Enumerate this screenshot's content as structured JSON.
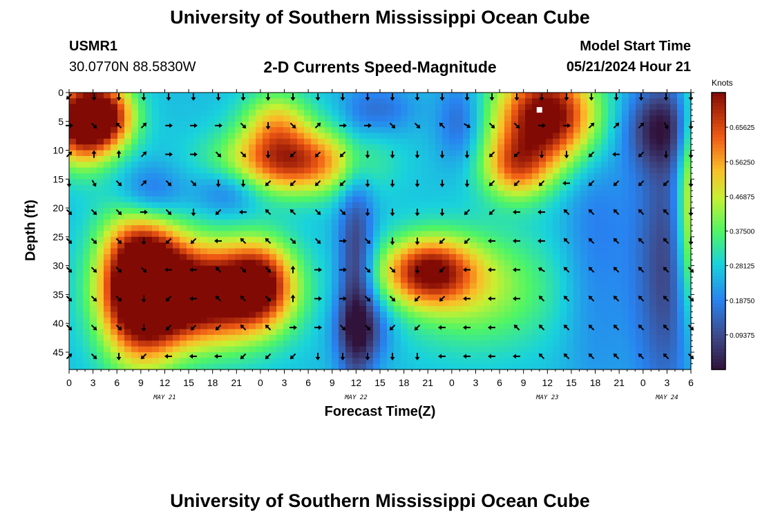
{
  "page": {
    "title": "University of Southern Mississippi Ocean Cube",
    "footer_title": "University of Southern Mississippi Ocean Cube"
  },
  "station": {
    "id": "USMR1",
    "coords": "30.0770N  88.5830W"
  },
  "model": {
    "label": "Model Start Time",
    "time": "05/21/2024 Hour 21"
  },
  "chart_data": {
    "type": "heatmap",
    "title": "2-D Currents Speed-Magnitude",
    "xlabel": "Forecast Time(Z)",
    "ylabel": "Depth (ft)",
    "colorbar_label": "Knots",
    "colorbar_ticks": [
      "0.65625",
      "0.56250",
      "0.46875",
      "0.37500",
      "0.28125",
      "0.18750",
      "0.09375"
    ],
    "colorbar_range": [
      0.0,
      0.75
    ],
    "xlim_hours": [
      0,
      78
    ],
    "ylim": [
      0,
      48
    ],
    "y_ticks": [
      0,
      5,
      10,
      15,
      20,
      25,
      30,
      35,
      40,
      45
    ],
    "x_tick_labels": [
      "0",
      "3",
      "6",
      "9",
      "12",
      "15",
      "18",
      "21",
      "0",
      "3",
      "6",
      "9",
      "12",
      "15",
      "18",
      "21",
      "0",
      "3",
      "6",
      "9",
      "12",
      "15",
      "18",
      "21",
      "0",
      "3",
      "6"
    ],
    "date_labels": [
      {
        "text": "MAY 21",
        "hour": 12
      },
      {
        "text": "MAY 22",
        "hour": 36
      },
      {
        "text": "MAY 23",
        "hour": 60
      },
      {
        "text": "MAY 24",
        "hour": 75
      }
    ],
    "marker": {
      "hour": 59,
      "depth": 3
    },
    "blobs": [
      {
        "x": 1.5,
        "y": 5,
        "sx": 2.8,
        "sy": 5,
        "a": 0.55
      },
      {
        "x": 5,
        "y": 4,
        "sx": 2.5,
        "sy": 4,
        "a": 0.35
      },
      {
        "x": 9,
        "y": 33,
        "sx": 3.5,
        "sy": 9,
        "a": 0.65
      },
      {
        "x": 17,
        "y": 35,
        "sx": 6,
        "sy": 6,
        "a": 0.58
      },
      {
        "x": 24,
        "y": 33,
        "sx": 3,
        "sy": 5,
        "a": 0.35
      },
      {
        "x": 28,
        "y": 12,
        "sx": 6,
        "sy": 4,
        "a": 0.42
      },
      {
        "x": 26,
        "y": 5,
        "sx": 3,
        "sy": 4,
        "a": 0.22
      },
      {
        "x": 45,
        "y": 31,
        "sx": 4,
        "sy": 4,
        "a": 0.42
      },
      {
        "x": 51,
        "y": 34,
        "sx": 7,
        "sy": 7,
        "a": 0.18
      },
      {
        "x": 60,
        "y": 4,
        "sx": 4.5,
        "sy": 6,
        "a": 0.55
      },
      {
        "x": 56,
        "y": 13,
        "sx": 3,
        "sy": 4,
        "a": 0.3
      },
      {
        "x": 78,
        "y": 20,
        "sx": 1.3,
        "sy": 14,
        "a": 0.3
      },
      {
        "x": 20,
        "y": 17,
        "sx": 3,
        "sy": 3,
        "a": -0.12
      },
      {
        "x": 36,
        "y": 33,
        "sx": 1.6,
        "sy": 14,
        "a": -0.22
      },
      {
        "x": 37,
        "y": 41,
        "sx": 2.5,
        "sy": 4,
        "a": -0.15
      },
      {
        "x": 10,
        "y": 18,
        "sx": 3,
        "sy": 4,
        "a": -0.2
      },
      {
        "x": 74,
        "y": 6,
        "sx": 3,
        "sy": 5,
        "a": -0.2
      },
      {
        "x": 75,
        "y": 30,
        "sx": 3,
        "sy": 18,
        "a": -0.18
      },
      {
        "x": 49,
        "y": 5,
        "sx": 2,
        "sy": 5,
        "a": -0.12
      },
      {
        "x": 39,
        "y": 3,
        "sx": 3,
        "sy": 3,
        "a": -0.1
      },
      {
        "x": 66,
        "y": 26,
        "sx": 3,
        "sy": 20,
        "a": -0.08
      }
    ],
    "arrow_rows": [
      {
        "depth": 0,
        "dirs": [
          225,
          180,
          180,
          180,
          180,
          180,
          180,
          180,
          180,
          180,
          180,
          180,
          180,
          180,
          180,
          180,
          180,
          180,
          180,
          180,
          180,
          180,
          180,
          180,
          180,
          180
        ]
      },
      {
        "depth": 5,
        "dirs": [
          90,
          135,
          315,
          45,
          90,
          90,
          90,
          135,
          180,
          135,
          45,
          90,
          90,
          135,
          135,
          315,
          120,
          135,
          135,
          90,
          90,
          45,
          45,
          45,
          150,
          180
        ]
      },
      {
        "depth": 10,
        "dirs": [
          45,
          0,
          0,
          45,
          90,
          90,
          135,
          135,
          180,
          225,
          225,
          225,
          180,
          180,
          180,
          180,
          180,
          225,
          225,
          180,
          180,
          225,
          270,
          225,
          180,
          180
        ]
      },
      {
        "depth": 15,
        "dirs": [
          180,
          150,
          135,
          45,
          135,
          135,
          180,
          180,
          225,
          225,
          225,
          225,
          180,
          180,
          180,
          180,
          180,
          225,
          225,
          225,
          270,
          225,
          225,
          225,
          225,
          180
        ]
      },
      {
        "depth": 20,
        "dirs": [
          135,
          135,
          135,
          90,
          135,
          180,
          225,
          270,
          315,
          315,
          135,
          135,
          180,
          180,
          180,
          180,
          225,
          225,
          270,
          270,
          315,
          315,
          315,
          315,
          315,
          180
        ]
      },
      {
        "depth": 25,
        "dirs": [
          135,
          135,
          135,
          180,
          225,
          225,
          270,
          315,
          315,
          135,
          135,
          90,
          135,
          180,
          180,
          225,
          225,
          270,
          270,
          270,
          315,
          315,
          315,
          315,
          315,
          180
        ]
      },
      {
        "depth": 30,
        "dirs": [
          135,
          135,
          135,
          135,
          270,
          270,
          315,
          135,
          135,
          0,
          90,
          90,
          135,
          135,
          180,
          225,
          270,
          270,
          270,
          300,
          315,
          315,
          315,
          315,
          315,
          135
        ]
      },
      {
        "depth": 35,
        "dirs": [
          135,
          135,
          135,
          180,
          225,
          270,
          315,
          315,
          135,
          0,
          90,
          90,
          135,
          135,
          225,
          225,
          270,
          270,
          270,
          315,
          315,
          315,
          315,
          315,
          315,
          135
        ]
      },
      {
        "depth": 40,
        "dirs": [
          135,
          135,
          135,
          180,
          225,
          225,
          225,
          315,
          315,
          90,
          90,
          135,
          135,
          225,
          225,
          270,
          270,
          270,
          315,
          315,
          315,
          315,
          315,
          315,
          315,
          135
        ]
      },
      {
        "depth": 45,
        "dirs": [
          45,
          135,
          180,
          225,
          270,
          270,
          270,
          225,
          225,
          225,
          180,
          180,
          180,
          180,
          180,
          270,
          270,
          270,
          270,
          315,
          315,
          315,
          315,
          315,
          315,
          135
        ]
      }
    ]
  }
}
